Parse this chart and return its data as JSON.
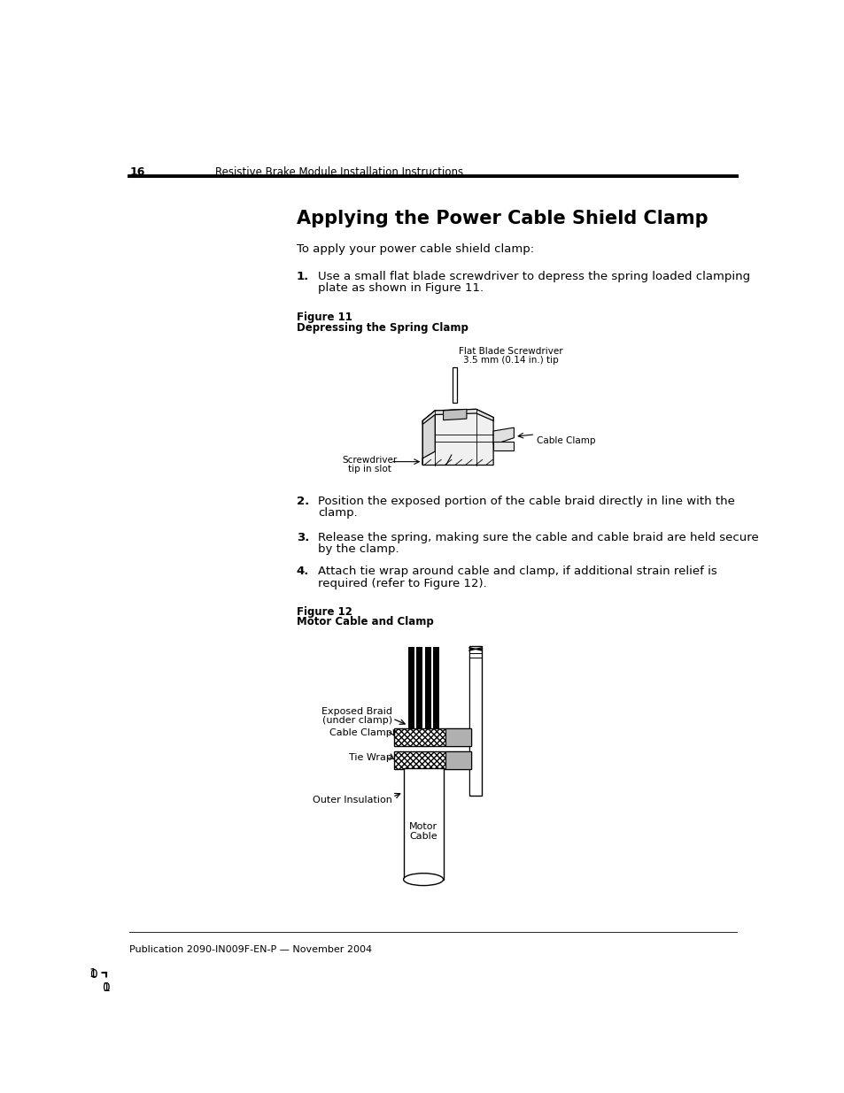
{
  "page_number": "16",
  "header_text": "Resistive Brake Module Installation Instructions",
  "title": "Applying the Power Cable Shield Clamp",
  "intro_text": "To apply your power cable shield clamp:",
  "step1_num": "1.",
  "step1_line1": "Use a small flat blade screwdriver to depress the spring loaded clamping",
  "step1_line2": "plate as shown in Figure 11.",
  "step2_num": "2.",
  "step2_line1": "Position the exposed portion of the cable braid directly in line with the",
  "step2_line2": "clamp.",
  "step3_num": "3.",
  "step3_line1": "Release the spring, making sure the cable and cable braid are held secure",
  "step3_line2": "by the clamp.",
  "step4_num": "4.",
  "step4_line1": "Attach tie wrap around cable and clamp, if additional strain relief is",
  "step4_line2": "required (refer to Figure 12).",
  "fig11_label": "Figure 11",
  "fig11_caption": "Depressing the Spring Clamp",
  "fig11_annot_screwdriver_line1": "Flat Blade Screwdriver",
  "fig11_annot_screwdriver_line2": "3.5 mm (0.14 in.) tip",
  "fig11_annot_cable_clamp": "Cable Clamp",
  "fig11_annot_tip_line1": "Screwdriver",
  "fig11_annot_tip_line2": "tip in slot",
  "fig12_label": "Figure 12",
  "fig12_caption": "Motor Cable and Clamp",
  "fig12_annot_braid_line1": "Exposed Braid",
  "fig12_annot_braid_line2": "(under clamp)",
  "fig12_annot_clamp": "Cable Clamp",
  "fig12_annot_tiewrap": "Tie Wrap",
  "fig12_annot_insulation": "Outer Insulation",
  "fig12_annot_motor_line1": "Motor",
  "fig12_annot_motor_line2": "Cable",
  "footer_text": "Publication 2090-IN009F-EN-P — November 2004",
  "bg_color": "#ffffff",
  "text_color": "#000000"
}
